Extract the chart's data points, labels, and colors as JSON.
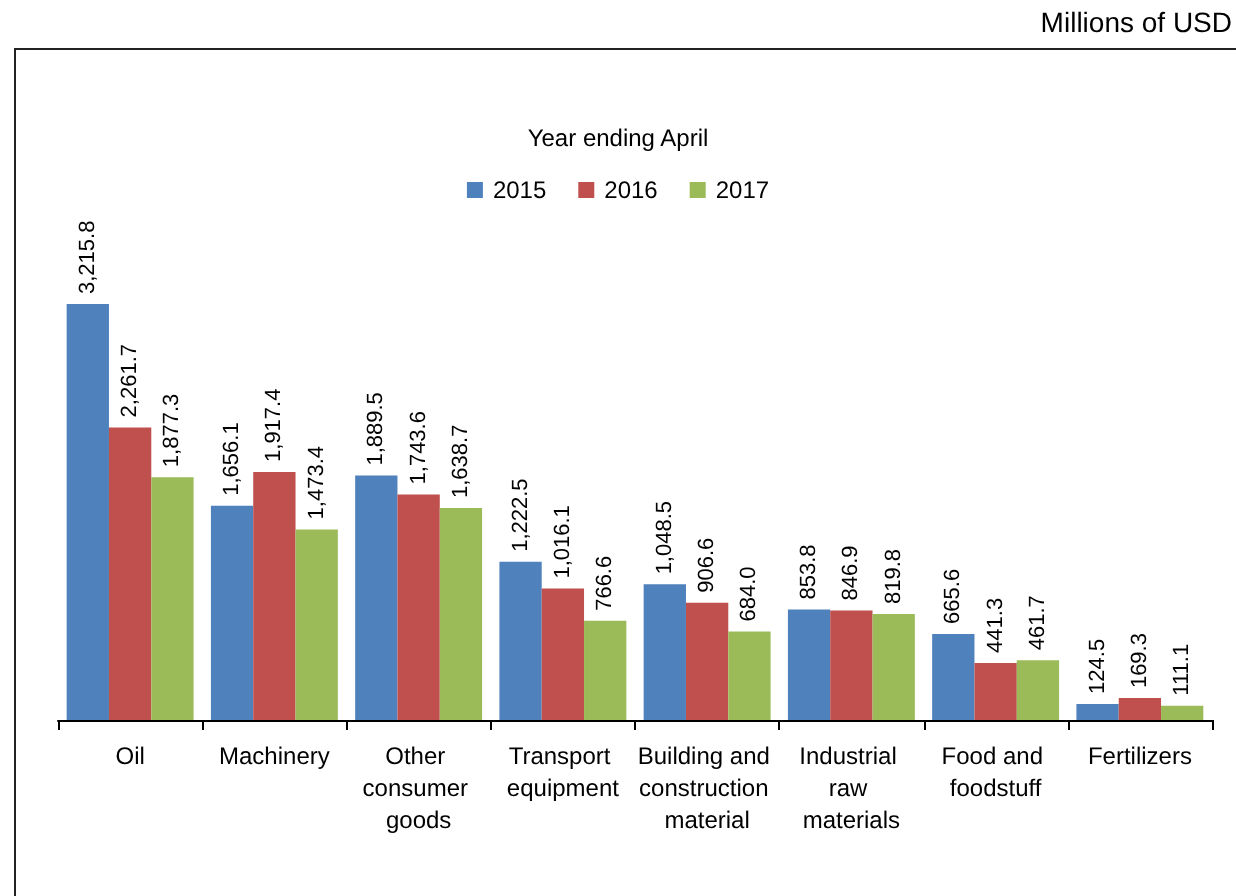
{
  "chart_data": {
    "type": "bar",
    "legend_title": "Year ending April",
    "annotations": [
      "Millions of USD"
    ],
    "categories": [
      "Oil",
      "Machinery",
      "Other consumer goods",
      "Transport equipment",
      "Building and construction material",
      "Industrial raw materials",
      "Food and foodstuff",
      "Fertilizers"
    ],
    "series": [
      {
        "name": "2015",
        "color": "#4f81bd",
        "values": [
          3215.8,
          1656.1,
          1889.5,
          1222.5,
          1048.5,
          853.8,
          665.6,
          124.5
        ],
        "value_labels": [
          "3,215.8",
          "1,656.1",
          "1,889.5",
          "1,222.5",
          "1,048.5",
          "853.8",
          "665.6",
          "124.5"
        ]
      },
      {
        "name": "2016",
        "color": "#c0504d",
        "values": [
          2261.7,
          1917.4,
          1743.6,
          1016.1,
          906.6,
          846.9,
          441.3,
          169.3
        ],
        "value_labels": [
          "2,261.7",
          "1,917.4",
          "1,743.6",
          "1,016.1",
          "906.6",
          "846.9",
          "441.3",
          "169.3"
        ]
      },
      {
        "name": "2017",
        "color": "#9bbb59",
        "values": [
          1877.3,
          1473.4,
          1638.7,
          766.6,
          684.0,
          819.8,
          461.7,
          111.1
        ],
        "value_labels": [
          "1,877.3",
          "1,473.4",
          "1,638.7",
          "766.6",
          "684.0",
          "819.8",
          "461.7",
          "111.1"
        ]
      }
    ],
    "legend": "top"
  }
}
